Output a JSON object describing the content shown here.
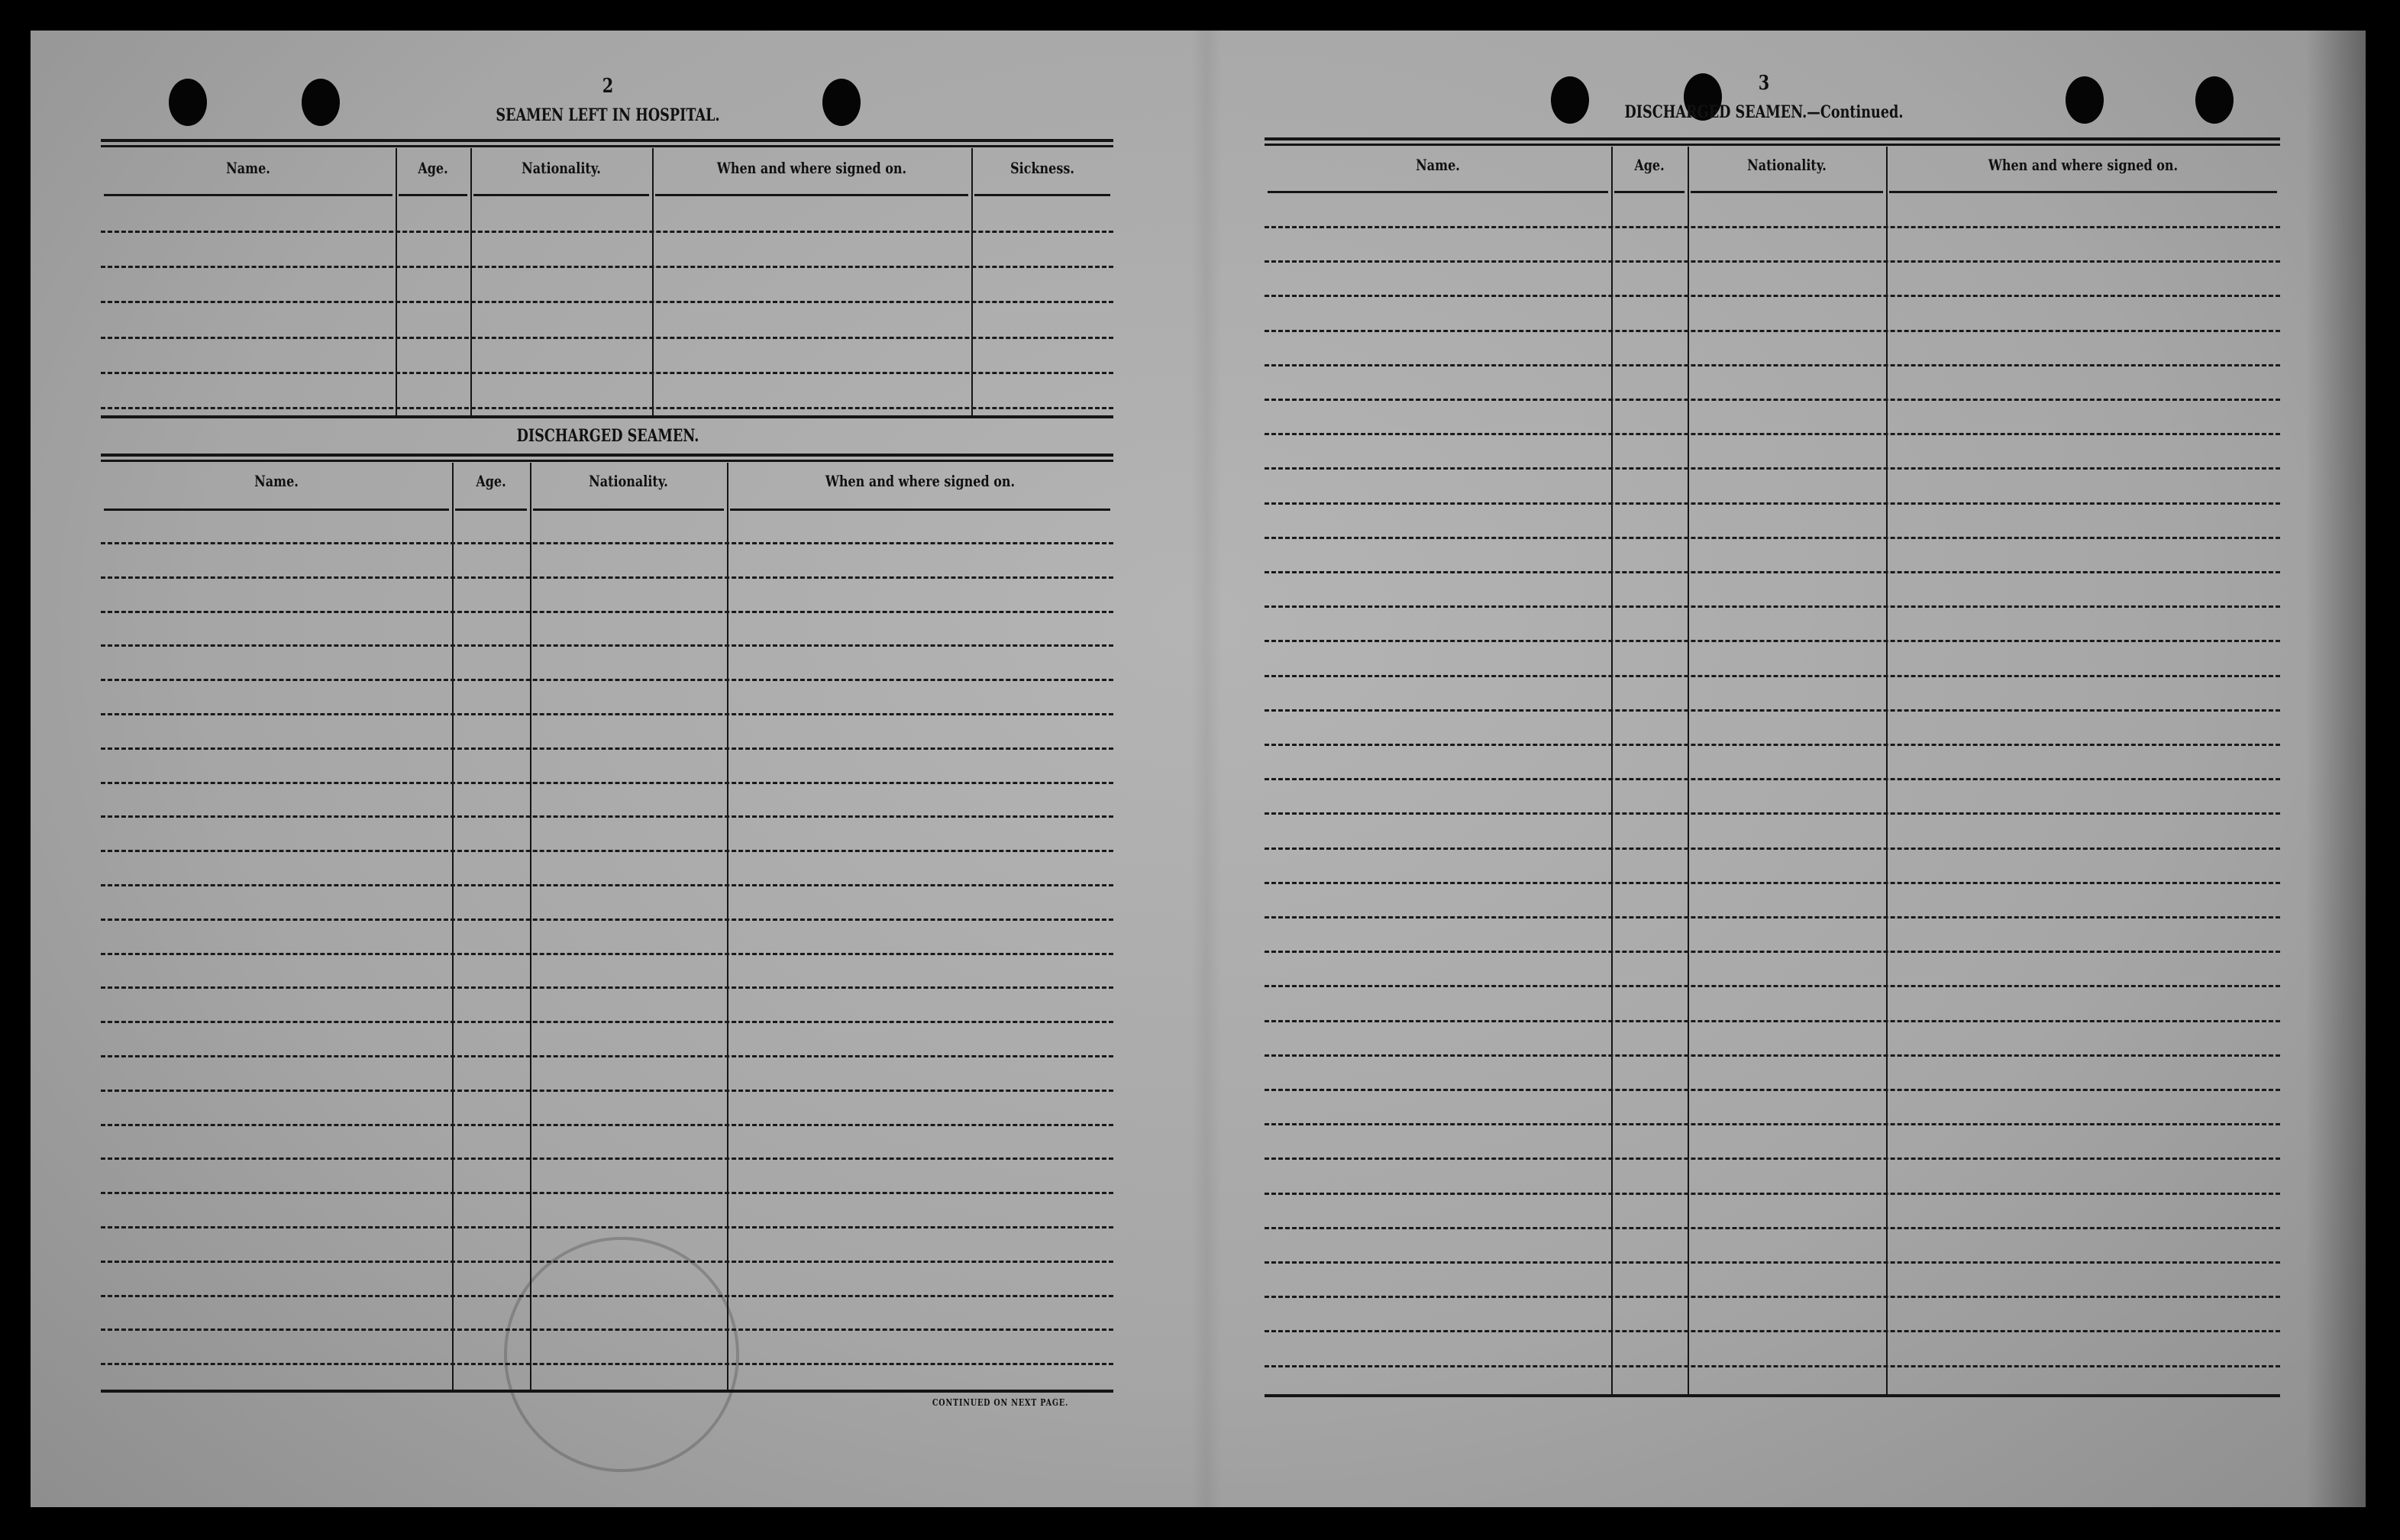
{
  "left_page": {
    "page_number": "2",
    "hospital_section": {
      "title": "SEAMEN LEFT IN HOSPITAL.",
      "columns": [
        "Name.",
        "Age.",
        "Nationality.",
        "When and where signed on.",
        "Sickness."
      ]
    },
    "discharged_section": {
      "title": "DISCHARGED SEAMEN.",
      "columns": [
        "Name.",
        "Age.",
        "Nationality.",
        "When and where signed on."
      ]
    },
    "footer": "CONTINUED ON NEXT PAGE."
  },
  "right_page": {
    "page_number": "3",
    "title": "DISCHARGED SEAMEN.—Continued.",
    "columns": [
      "Name.",
      "Age.",
      "Nationality.",
      "When and where signed on."
    ]
  }
}
